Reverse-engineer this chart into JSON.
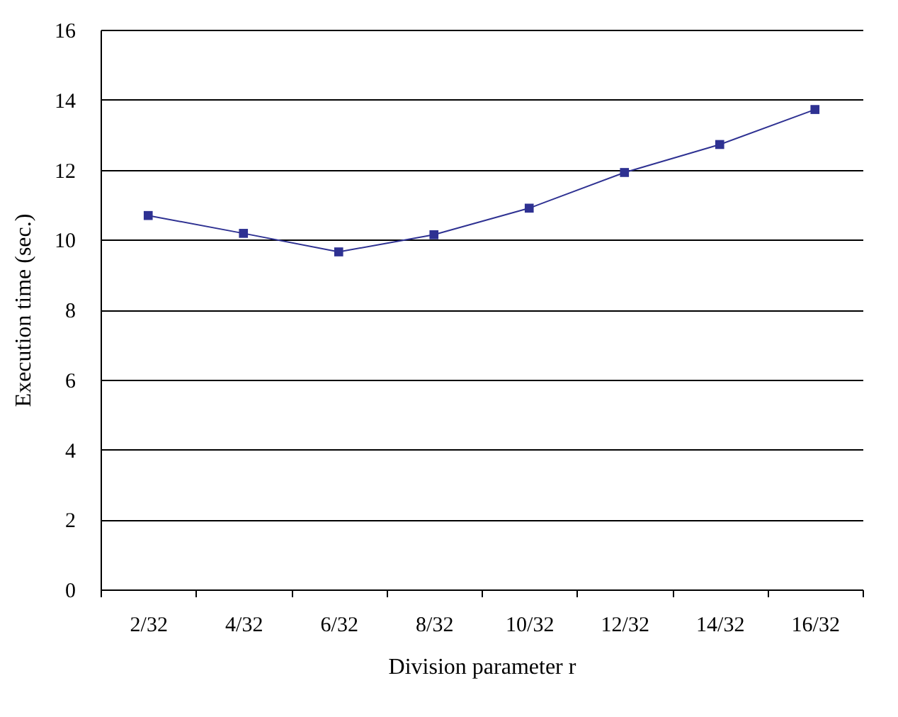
{
  "chart_data": {
    "type": "line",
    "xlabel": "Division parameter r",
    "ylabel": "Execution time (sec.)",
    "categories": [
      "2/32",
      "4/32",
      "6/32",
      "8/32",
      "10/32",
      "12/32",
      "14/32",
      "16/32"
    ],
    "series": [
      {
        "color": "#2e3192",
        "values": [
          10.69,
          10.18,
          9.65,
          10.14,
          10.9,
          11.92,
          12.72,
          13.72
        ]
      }
    ],
    "ylim": [
      0,
      16
    ],
    "yticks": [
      0,
      2,
      4,
      6,
      8,
      10,
      12,
      14,
      16
    ],
    "grid": "y",
    "marker": "square",
    "line_style": "solid"
  }
}
